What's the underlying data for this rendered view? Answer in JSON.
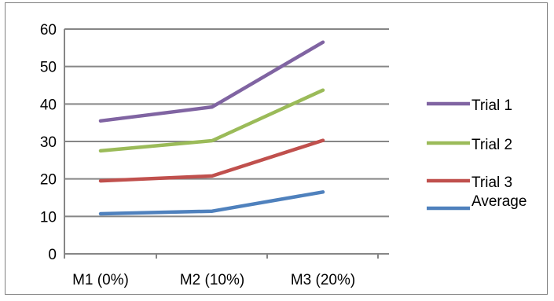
{
  "chart_data": {
    "type": "line",
    "categories": [
      "M1 (0%)",
      "M2 (10%)",
      "M3 (20%)"
    ],
    "ylim": [
      0,
      60
    ],
    "yticks": [
      0,
      10,
      20,
      30,
      40,
      50,
      60
    ],
    "grid": true,
    "legend_position": "right",
    "series": [
      {
        "name": "Trial 1",
        "color": "#8064a2",
        "values": [
          35.5,
          39.2,
          56.5
        ]
      },
      {
        "name": "Trial 2",
        "color": "#9bbb59",
        "values": [
          27.5,
          30.2,
          43.7
        ]
      },
      {
        "name": "Trial 3",
        "color": "#c0504d",
        "values": [
          19.5,
          20.8,
          30.3
        ]
      },
      {
        "name": "Average",
        "color": "#4f81bd",
        "values": [
          10.7,
          11.4,
          16.5
        ]
      }
    ]
  }
}
